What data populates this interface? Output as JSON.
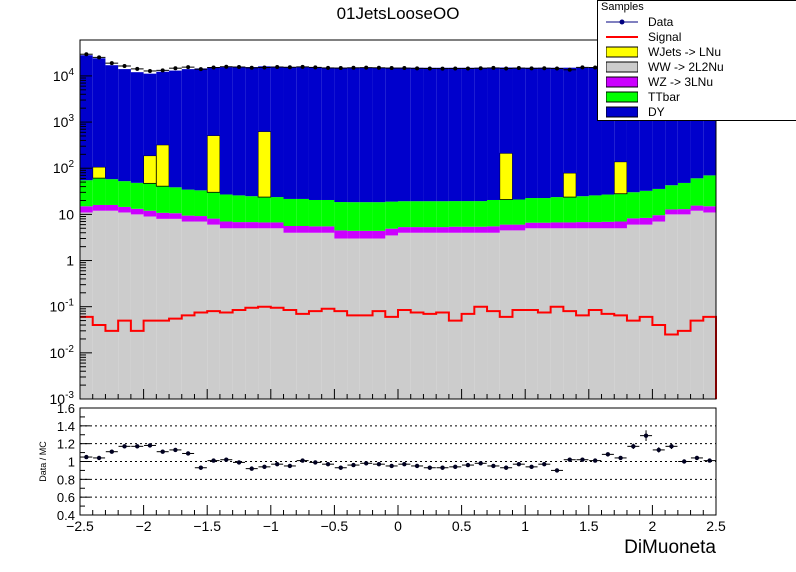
{
  "figure": {
    "title": "01JetsLooseOO",
    "xlabel": "DiMuoneta",
    "ratio_ylabel": "Data / MC"
  },
  "legend": {
    "header": "Samples",
    "entries": [
      {
        "label": "Data",
        "color": "#000080",
        "style": "marker"
      },
      {
        "label": "Signal",
        "color": "#ff0000",
        "style": "line"
      },
      {
        "label": "WJets -> LNu",
        "color": "#ffff00",
        "style": "fill"
      },
      {
        "label": "WW -> 2L2Nu",
        "color": "#cccccc",
        "style": "fill"
      },
      {
        "label": "WZ -> 3LNu",
        "color": "#cc00ff",
        "style": "fill"
      },
      {
        "label": "TTbar",
        "color": "#00ff00",
        "style": "fill"
      },
      {
        "label": "DY",
        "color": "#0000cc",
        "style": "fill"
      }
    ]
  },
  "chart_data": [
    {
      "type": "bar",
      "stacked": true,
      "title": "01JetsLooseOO",
      "xlabel": "DiMuoneta",
      "yscale": "log",
      "xlim": [
        -2.5,
        2.5
      ],
      "ylim": [
        0.001,
        60000
      ],
      "xticks": [
        "-2.5",
        "-2",
        "-1.5",
        "-1",
        "-0.5",
        "0",
        "0.5",
        "1",
        "1.5",
        "2",
        "2.5"
      ],
      "yticks": [
        "10^-3",
        "10^-2",
        "10^-1",
        "1",
        "10",
        "10^2",
        "10^3",
        "10^4"
      ],
      "x_bin_edges": [
        -2.5,
        -2.4,
        -2.3,
        -2.2,
        -2.1,
        -2.0,
        -1.9,
        -1.8,
        -1.7,
        -1.6,
        -1.5,
        -1.4,
        -1.3,
        -1.2,
        -1.1,
        -1.0,
        -0.9,
        -0.8,
        -0.7,
        -0.6,
        -0.5,
        -0.4,
        -0.3,
        -0.2,
        -0.1,
        0.0,
        0.1,
        0.2,
        0.3,
        0.4,
        0.5,
        0.6,
        0.7,
        0.8,
        0.9,
        1.0,
        1.1,
        1.2,
        1.3,
        1.4,
        1.5,
        1.6,
        1.7,
        1.8,
        1.9,
        2.0,
        2.1,
        2.2,
        2.3,
        2.4,
        2.5
      ],
      "series": [
        {
          "name": "WW -> 2L2Nu",
          "values": [
            11,
            12,
            12,
            11,
            10,
            9,
            8,
            8,
            7,
            7,
            6,
            5,
            5,
            5,
            5,
            5,
            4,
            4,
            4,
            4,
            3,
            3,
            3,
            3,
            3.5,
            4,
            4,
            4,
            4,
            4,
            4,
            4,
            4,
            4.5,
            4.5,
            5,
            5,
            5,
            5,
            5,
            5,
            5,
            5,
            6,
            6,
            7,
            10,
            10,
            12,
            11
          ]
        },
        {
          "name": "WZ -> 3LNu",
          "values": [
            4,
            4,
            4,
            3.5,
            3.2,
            3,
            2.8,
            2.6,
            2.4,
            2.2,
            2.1,
            2,
            1.8,
            1.8,
            1.7,
            1.7,
            1.6,
            1.6,
            1.5,
            1.5,
            1.5,
            1.4,
            1.4,
            1.4,
            1.4,
            1.3,
            1.3,
            1.3,
            1.3,
            1.4,
            1.4,
            1.4,
            1.5,
            1.5,
            1.5,
            1.6,
            1.6,
            1.7,
            1.7,
            1.8,
            1.8,
            1.9,
            2,
            2.2,
            2.4,
            2.6,
            2.8,
            3,
            3.5,
            4
          ]
        },
        {
          "name": "TTbar",
          "values": [
            40,
            45,
            42,
            38,
            35,
            35,
            30,
            28,
            25,
            24,
            22,
            20,
            19,
            18,
            17,
            17,
            16,
            16,
            15,
            15,
            14,
            14,
            14,
            14,
            14,
            14,
            14,
            14,
            14,
            14,
            14,
            14,
            15,
            15,
            15,
            16,
            16,
            17,
            17,
            18,
            19,
            20,
            21,
            22,
            24,
            26,
            30,
            35,
            45,
            55
          ]
        },
        {
          "name": "WJets -> LNu",
          "values": [
            0,
            45,
            0,
            0,
            0,
            140,
            280,
            0,
            0,
            0,
            480,
            0,
            0,
            0,
            600,
            0,
            0,
            0,
            0,
            0,
            0,
            0,
            0,
            0,
            0,
            0,
            0,
            0,
            0,
            0,
            0,
            0,
            0,
            190,
            0,
            0,
            0,
            0,
            55,
            0,
            0,
            0,
            110,
            0,
            0,
            0,
            0,
            0,
            0,
            0
          ]
        },
        {
          "name": "DY",
          "values": [
            28000,
            24000,
            17000,
            14000,
            12000,
            11000,
            12000,
            13000,
            14000,
            14500,
            15000,
            15500,
            15500,
            15500,
            15500,
            15500,
            15500,
            15500,
            15500,
            15000,
            15000,
            15000,
            15000,
            15000,
            15000,
            15000,
            15000,
            15000,
            15000,
            15000,
            15000,
            15000,
            15000,
            15000,
            15000,
            15000,
            15000,
            15000,
            15000,
            15000,
            15000,
            15000,
            14500,
            14500,
            14000,
            13500,
            13500,
            13500,
            13000,
            12500
          ]
        },
        {
          "name": "Signal",
          "style": "line",
          "values": [
            0.06,
            0.04,
            0.03,
            0.05,
            0.03,
            0.05,
            0.05,
            0.055,
            0.065,
            0.075,
            0.08,
            0.075,
            0.085,
            0.095,
            0.1,
            0.095,
            0.085,
            0.07,
            0.08,
            0.09,
            0.08,
            0.065,
            0.065,
            0.08,
            0.06,
            0.085,
            0.075,
            0.07,
            0.075,
            0.05,
            0.07,
            0.1,
            0.08,
            0.06,
            0.085,
            0.085,
            0.075,
            0.1,
            0.08,
            0.065,
            0.085,
            0.07,
            0.065,
            0.05,
            0.06,
            0.04,
            0.025,
            0.03,
            0.05,
            0.06
          ]
        },
        {
          "name": "Data",
          "style": "marker",
          "values": [
            29500,
            25200,
            18900,
            16400,
            14200,
            12800,
            13200,
            14700,
            15500,
            14000,
            15200,
            15800,
            15600,
            15000,
            15200,
            15600,
            15400,
            15700,
            15300,
            14900,
            14800,
            15000,
            15100,
            15000,
            14800,
            14800,
            14600,
            14500,
            14400,
            14500,
            14500,
            14700,
            14900,
            14500,
            14800,
            14600,
            14700,
            14500,
            13600,
            15300,
            15200,
            15400,
            15800,
            15200,
            16500,
            17800,
            15200,
            15900,
            13000,
            13200
          ]
        }
      ]
    },
    {
      "type": "scatter",
      "ylabel": "Data / MC",
      "xlim": [
        -2.5,
        2.5
      ],
      "ylim": [
        0.4,
        1.6
      ],
      "xticks": [
        "-2.5",
        "-2",
        "-1.5",
        "-1",
        "-0.5",
        "0",
        "0.5",
        "1",
        "1.5",
        "2",
        "2.5"
      ],
      "yticks": [
        "0.4",
        "0.6",
        "0.8",
        "1",
        "1.2",
        "1.4",
        "1.6"
      ],
      "grid": true,
      "x": [
        -2.45,
        -2.35,
        -2.25,
        -2.15,
        -2.05,
        -1.95,
        -1.85,
        -1.75,
        -1.65,
        -1.55,
        -1.45,
        -1.35,
        -1.25,
        -1.15,
        -1.05,
        -0.95,
        -0.85,
        -0.75,
        -0.65,
        -0.55,
        -0.45,
        -0.35,
        -0.25,
        -0.15,
        -0.05,
        0.05,
        0.15,
        0.25,
        0.35,
        0.45,
        0.55,
        0.65,
        0.75,
        0.85,
        0.95,
        1.05,
        1.15,
        1.25,
        1.35,
        1.45,
        1.55,
        1.65,
        1.75,
        1.85,
        1.95,
        2.05,
        2.15,
        2.25,
        2.35,
        2.45
      ],
      "y": [
        1.05,
        1.04,
        1.11,
        1.17,
        1.17,
        1.18,
        1.11,
        1.13,
        1.09,
        0.93,
        1.01,
        1.02,
        0.99,
        0.92,
        0.94,
        0.97,
        0.95,
        1.01,
        0.99,
        0.97,
        0.93,
        0.96,
        0.98,
        0.97,
        0.95,
        0.97,
        0.95,
        0.93,
        0.93,
        0.94,
        0.96,
        0.98,
        0.95,
        0.93,
        0.97,
        0.94,
        0.97,
        0.9,
        1.02,
        1.02,
        1.01,
        1.08,
        1.04,
        1.17,
        1.29,
        1.13,
        1.17,
        1.0,
        1.04,
        1.01
      ],
      "yerr": [
        0.02,
        0.02,
        0.02,
        0.02,
        0.02,
        0.02,
        0.02,
        0.02,
        0.02,
        0.02,
        0.02,
        0.02,
        0.02,
        0.02,
        0.02,
        0.02,
        0.02,
        0.02,
        0.02,
        0.02,
        0.02,
        0.02,
        0.02,
        0.02,
        0.02,
        0.02,
        0.02,
        0.02,
        0.02,
        0.02,
        0.02,
        0.02,
        0.02,
        0.02,
        0.02,
        0.02,
        0.02,
        0.02,
        0.02,
        0.02,
        0.02,
        0.02,
        0.02,
        0.03,
        0.06,
        0.03,
        0.03,
        0.02,
        0.02,
        0.02
      ]
    }
  ]
}
